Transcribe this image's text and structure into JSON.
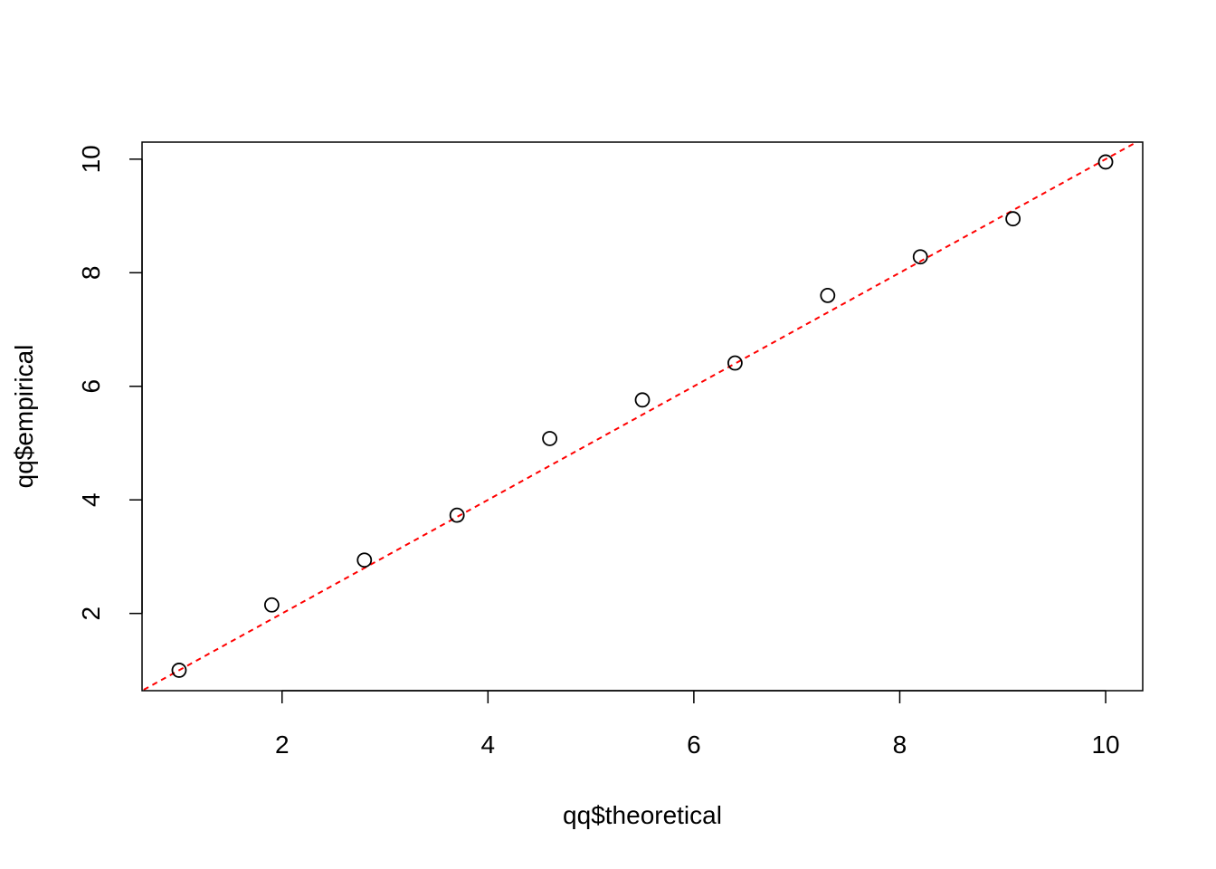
{
  "chart_data": {
    "type": "scatter",
    "title": "",
    "xlabel": "qq$theoretical",
    "ylabel": "qq$empirical",
    "xlim": [
      0.64,
      10.36
    ],
    "ylim": [
      0.64,
      10.3
    ],
    "x_ticks": [
      2,
      4,
      6,
      8,
      10
    ],
    "y_ticks": [
      2,
      4,
      6,
      8,
      10
    ],
    "x_tick_labels": [
      "2",
      "4",
      "6",
      "8",
      "10"
    ],
    "y_tick_labels": [
      "2",
      "4",
      "6",
      "8",
      "10"
    ],
    "grid": false,
    "points": [
      {
        "x": 1.0,
        "y": 1.0
      },
      {
        "x": 1.9,
        "y": 2.15
      },
      {
        "x": 2.8,
        "y": 2.94
      },
      {
        "x": 3.7,
        "y": 3.73
      },
      {
        "x": 4.6,
        "y": 5.08
      },
      {
        "x": 5.5,
        "y": 5.76
      },
      {
        "x": 6.4,
        "y": 6.41
      },
      {
        "x": 7.3,
        "y": 7.6
      },
      {
        "x": 8.2,
        "y": 8.28
      },
      {
        "x": 9.1,
        "y": 8.95
      },
      {
        "x": 10.0,
        "y": 9.95
      }
    ],
    "reference_line": {
      "intercept": 0,
      "slope": 1,
      "style": "dashed",
      "color": "#ff0000"
    },
    "point_style": "open-circle",
    "point_color": "#000000"
  }
}
